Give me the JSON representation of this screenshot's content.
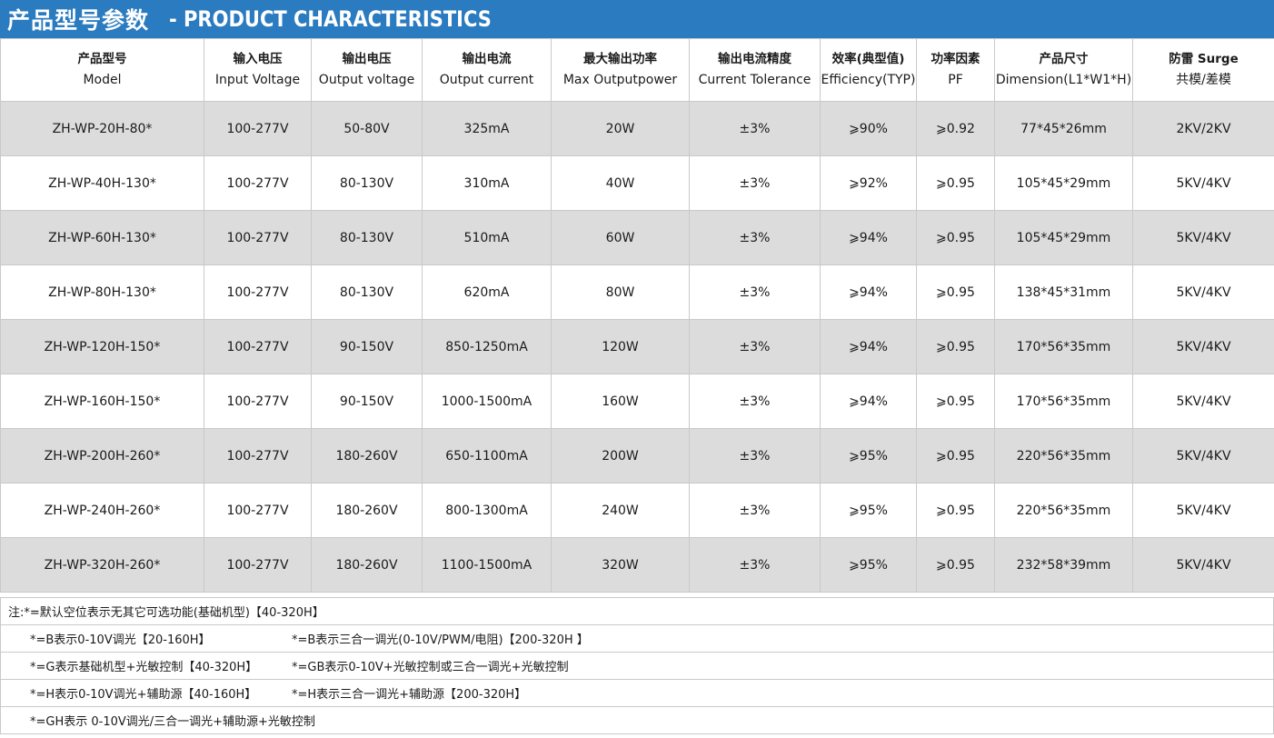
{
  "banner": {
    "title_cn": "产品型号参数",
    "title_en": "- PRODUCT CHARACTERISTICS"
  },
  "columns": [
    {
      "zh": "产品型号",
      "en": "Model"
    },
    {
      "zh": "输入电压",
      "en": "Input Voltage"
    },
    {
      "zh": "输出电压",
      "en": "Output voltage"
    },
    {
      "zh": "输出电流",
      "en": "Output current"
    },
    {
      "zh": "最大输出功率",
      "en": "Max Outputpower"
    },
    {
      "zh": "输出电流精度",
      "en": "Current Tolerance"
    },
    {
      "zh": "效率(典型值)",
      "en": "Efficiency(TYP)"
    },
    {
      "zh": "功率因素",
      "en": "PF"
    },
    {
      "zh": "产品尺寸",
      "en": "Dimension(L1*W1*H)"
    },
    {
      "zh": "防雷 Surge",
      "en": "共模/差模"
    }
  ],
  "rows": [
    [
      "ZH-WP-20H-80*",
      "100-277V",
      "50-80V",
      "325mA",
      "20W",
      "±3%",
      "⩾90%",
      "⩾0.92",
      "77*45*26mm",
      "2KV/2KV"
    ],
    [
      "ZH-WP-40H-130*",
      "100-277V",
      "80-130V",
      "310mA",
      "40W",
      "±3%",
      "⩾92%",
      "⩾0.95",
      "105*45*29mm",
      "5KV/4KV"
    ],
    [
      "ZH-WP-60H-130*",
      "100-277V",
      "80-130V",
      "510mA",
      "60W",
      "±3%",
      "⩾94%",
      "⩾0.95",
      "105*45*29mm",
      "5KV/4KV"
    ],
    [
      "ZH-WP-80H-130*",
      "100-277V",
      "80-130V",
      "620mA",
      "80W",
      "±3%",
      "⩾94%",
      "⩾0.95",
      "138*45*31mm",
      "5KV/4KV"
    ],
    [
      "ZH-WP-120H-150*",
      "100-277V",
      "90-150V",
      "850-1250mA",
      "120W",
      "±3%",
      "⩾94%",
      "⩾0.95",
      "170*56*35mm",
      "5KV/4KV"
    ],
    [
      "ZH-WP-160H-150*",
      "100-277V",
      "90-150V",
      "1000-1500mA",
      "160W",
      "±3%",
      "⩾94%",
      "⩾0.95",
      "170*56*35mm",
      "5KV/4KV"
    ],
    [
      "ZH-WP-200H-260*",
      "100-277V",
      "180-260V",
      "650-1100mA",
      "200W",
      "±3%",
      "⩾95%",
      "⩾0.95",
      "220*56*35mm",
      "5KV/4KV"
    ],
    [
      "ZH-WP-240H-260*",
      "100-277V",
      "180-260V",
      "800-1300mA",
      "240W",
      "±3%",
      "⩾95%",
      "⩾0.95",
      "220*56*35mm",
      "5KV/4KV"
    ],
    [
      "ZH-WP-320H-260*",
      "100-277V",
      "180-260V",
      "1100-1500mA",
      "320W",
      "±3%",
      "⩾95%",
      "⩾0.95",
      "232*58*39mm",
      "5KV/4KV"
    ]
  ],
  "notes": {
    "first": "注:*=默认空位表示无其它可选功能(基础机型)【40-320H】",
    "pairs": [
      [
        "*=B表示0-10V调光【20-160H】",
        "*=B表示三合一调光(0-10V/PWM/电阻)【200-320H 】"
      ],
      [
        "*=G表示基础机型+光敏控制【40-320H】",
        "*=GB表示0-10V+光敏控制或三合一调光+光敏控制"
      ],
      [
        "*=H表示0-10V调光+辅助源【40-160H】",
        "*=H表示三合一调光+辅助源【200-320H】"
      ]
    ],
    "last": "*=GH表示 0-10V调光/三合一调光+辅助源+光敏控制"
  },
  "colors": {
    "banner": "#2a7bbf",
    "shaded_row": "#dcdcdd",
    "border": "#c9c9c9"
  }
}
